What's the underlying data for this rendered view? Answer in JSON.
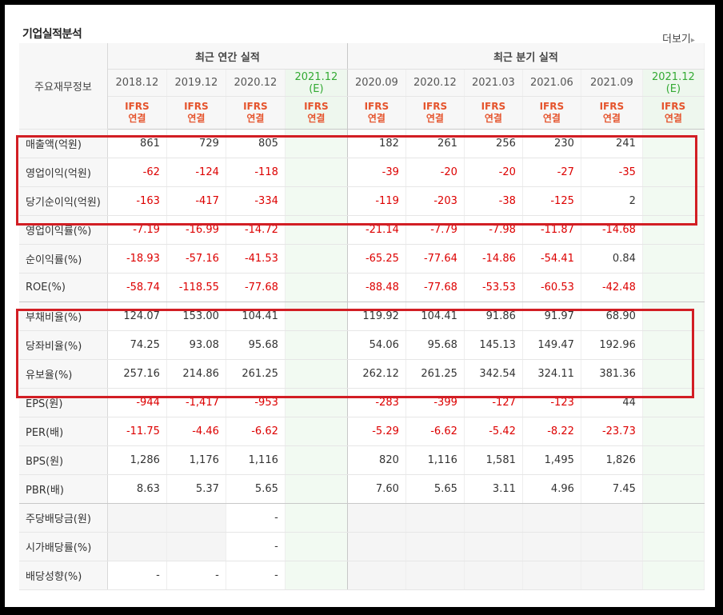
{
  "title": "기업실적분석",
  "more_label": "더보기",
  "header": {
    "row_label": "주요재무정보",
    "annual_group": "최근 연간 실적",
    "quarter_group": "최근 분기 실적",
    "annual_periods": [
      {
        "period": "2018.12",
        "est": ""
      },
      {
        "period": "2019.12",
        "est": ""
      },
      {
        "period": "2020.12",
        "est": ""
      },
      {
        "period": "2021.12",
        "est": "(E)"
      }
    ],
    "quarter_periods": [
      {
        "period": "2020.09",
        "est": ""
      },
      {
        "period": "2020.12",
        "est": ""
      },
      {
        "period": "2021.03",
        "est": ""
      },
      {
        "period": "2021.06",
        "est": ""
      },
      {
        "period": "2021.09",
        "est": ""
      },
      {
        "period": "2021.12",
        "est": "(E)"
      }
    ],
    "ifrs_line1": "IFRS",
    "ifrs_line2": "연결"
  },
  "rows": [
    {
      "label": "매출액(억원)",
      "values": [
        "861",
        "729",
        "805",
        "",
        "182",
        "261",
        "256",
        "230",
        "241",
        ""
      ]
    },
    {
      "label": "영업이익(억원)",
      "values": [
        "-62",
        "-124",
        "-118",
        "",
        "-39",
        "-20",
        "-20",
        "-27",
        "-35",
        ""
      ]
    },
    {
      "label": "당기순이익(억원)",
      "values": [
        "-163",
        "-417",
        "-334",
        "",
        "-119",
        "-203",
        "-38",
        "-125",
        "2",
        ""
      ]
    },
    {
      "label": "영업이익률(%)",
      "values": [
        "-7.19",
        "-16.99",
        "-14.72",
        "",
        "-21.14",
        "-7.79",
        "-7.98",
        "-11.87",
        "-14.68",
        ""
      ]
    },
    {
      "label": "순이익률(%)",
      "values": [
        "-18.93",
        "-57.16",
        "-41.53",
        "",
        "-65.25",
        "-77.64",
        "-14.86",
        "-54.41",
        "0.84",
        ""
      ]
    },
    {
      "label": "ROE(%)",
      "values": [
        "-58.74",
        "-118.55",
        "-77.68",
        "",
        "-88.48",
        "-77.68",
        "-53.53",
        "-60.53",
        "-42.48",
        ""
      ]
    },
    {
      "label": "부채비율(%)",
      "values": [
        "124.07",
        "153.00",
        "104.41",
        "",
        "119.92",
        "104.41",
        "91.86",
        "91.97",
        "68.90",
        ""
      ]
    },
    {
      "label": "당좌비율(%)",
      "values": [
        "74.25",
        "93.08",
        "95.68",
        "",
        "54.06",
        "95.68",
        "145.13",
        "149.47",
        "192.96",
        ""
      ]
    },
    {
      "label": "유보율(%)",
      "values": [
        "257.16",
        "214.86",
        "261.25",
        "",
        "262.12",
        "261.25",
        "342.54",
        "324.11",
        "381.36",
        ""
      ]
    },
    {
      "label": "EPS(원)",
      "values": [
        "-944",
        "-1,417",
        "-953",
        "",
        "-283",
        "-399",
        "-127",
        "-123",
        "44",
        ""
      ]
    },
    {
      "label": "PER(배)",
      "values": [
        "-11.75",
        "-4.46",
        "-6.62",
        "",
        "-5.29",
        "-6.62",
        "-5.42",
        "-8.22",
        "-23.73",
        ""
      ]
    },
    {
      "label": "BPS(원)",
      "values": [
        "1,286",
        "1,176",
        "1,116",
        "",
        "820",
        "1,116",
        "1,581",
        "1,495",
        "1,826",
        ""
      ]
    },
    {
      "label": "PBR(배)",
      "values": [
        "8.63",
        "5.37",
        "5.65",
        "",
        "7.60",
        "5.65",
        "3.11",
        "4.96",
        "7.45",
        ""
      ]
    },
    {
      "label": "주당배당금(원)",
      "values": [
        "",
        "",
        "-",
        "",
        "",
        "",
        "",
        "",
        "",
        ""
      ]
    },
    {
      "label": "시가배당률(%)",
      "values": [
        "",
        "",
        "-",
        "",
        "",
        "",
        "",
        "",
        "",
        ""
      ]
    },
    {
      "label": "배당성향(%)",
      "values": [
        "-",
        "-",
        "-",
        "",
        "",
        "",
        "",
        "",
        "",
        ""
      ]
    }
  ],
  "highlight_color": "#d21e24"
}
